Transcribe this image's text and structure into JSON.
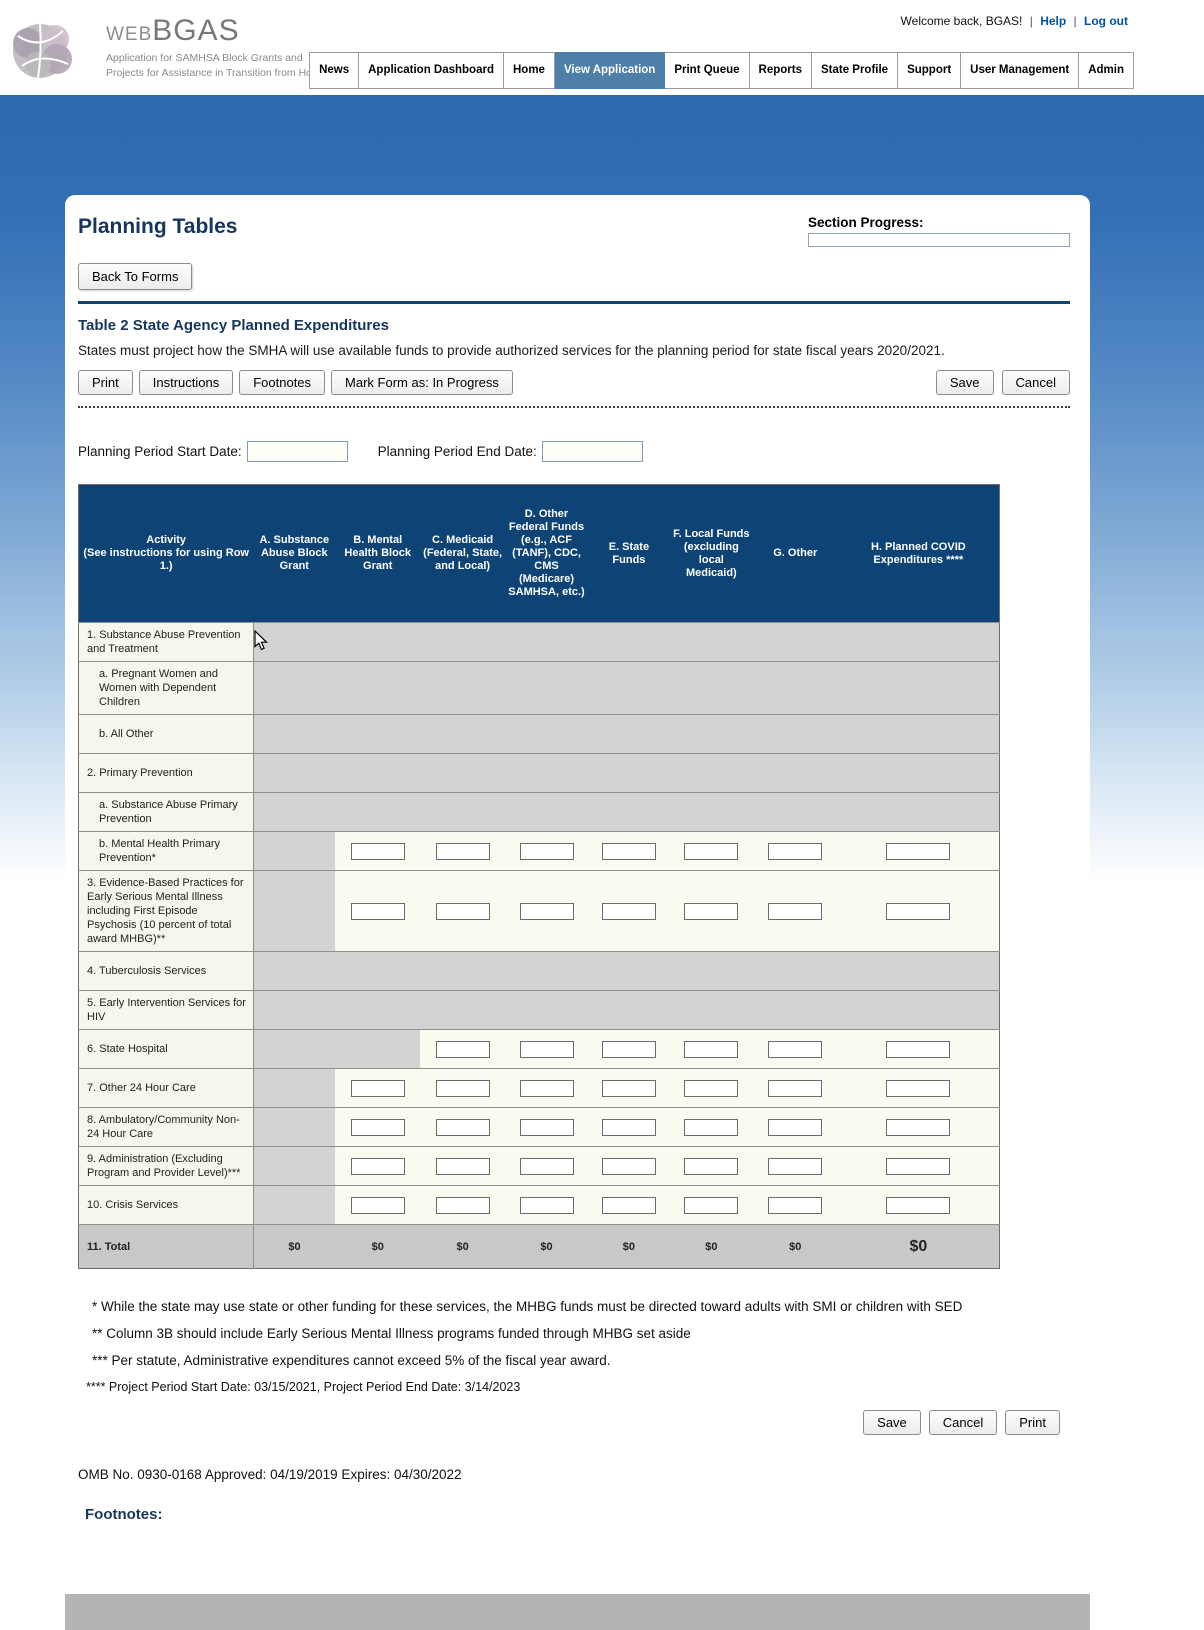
{
  "header": {
    "logo": {
      "web": "WEB",
      "bgas": "BGAS",
      "tagline1": "Application for SAMHSA Block Grants and",
      "tagline2": "Projects for Assistance in Transition from Homelessness Grants"
    },
    "user_bar": {
      "welcome": "Welcome back, BGAS!",
      "sep1": "|",
      "help": "Help",
      "sep2": "|",
      "logout": "Log out"
    }
  },
  "nav": {
    "items": [
      {
        "label": "News",
        "active": false
      },
      {
        "label": "Application Dashboard",
        "active": false
      },
      {
        "label": "Home",
        "active": false
      },
      {
        "label": "View Application",
        "active": true
      },
      {
        "label": "Print Queue",
        "active": false
      },
      {
        "label": "Reports",
        "active": false
      },
      {
        "label": "State Profile",
        "active": false
      },
      {
        "label": "Support",
        "active": false
      },
      {
        "label": "User Management",
        "active": false
      },
      {
        "label": "Admin",
        "active": false
      }
    ]
  },
  "page": {
    "title": "Planning Tables",
    "section_progress_label": "Section Progress:",
    "back_to_forms": "Back To Forms",
    "form": {
      "title": "Table 2 State Agency Planned Expenditures",
      "description": "States must project how the SMHA will use available funds to provide authorized services for the planning period for state fiscal years 2020/2021.",
      "toolbar": {
        "print": "Print",
        "instructions": "Instructions",
        "footnotes": "Footnotes",
        "mark_form": "Mark Form as: In Progress",
        "save": "Save",
        "cancel": "Cancel"
      },
      "dates": {
        "start_label": "Planning Period Start Date:",
        "start_value": "",
        "end_label": "Planning Period End Date:",
        "end_value": ""
      }
    },
    "table": {
      "columns": [
        "Activity\n(See instructions for using Row 1.)",
        "A.  Substance Abuse Block Grant",
        "B.  Mental Health Block Grant",
        "C.  Medicaid (Federal, State, and Local)",
        "D.  Other Federal Funds (e.g., ACF (TANF), CDC, CMS (Medicare) SAMHSA, etc.)",
        "E.  State Funds",
        "F.  Local Funds (excluding local Medicaid)",
        "G.  Other",
        "H.  Planned COVID Expenditures ****"
      ],
      "rows": [
        {
          "label": "1. Substance Abuse Prevention and Treatment",
          "indent": false,
          "total": false,
          "cells": [
            "gray",
            "gray",
            "gray",
            "gray",
            "gray",
            "gray",
            "gray",
            "gray"
          ]
        },
        {
          "label": "a. Pregnant Women and Women with Dependent Children",
          "indent": true,
          "total": false,
          "cells": [
            "gray",
            "gray",
            "gray",
            "gray",
            "gray",
            "gray",
            "gray",
            "gray"
          ]
        },
        {
          "label": "b. All Other",
          "indent": true,
          "total": false,
          "cells": [
            "gray",
            "gray",
            "gray",
            "gray",
            "gray",
            "gray",
            "gray",
            "gray"
          ]
        },
        {
          "label": "2. Primary Prevention",
          "indent": false,
          "total": false,
          "cells": [
            "gray",
            "gray",
            "gray",
            "gray",
            "gray",
            "gray",
            "gray",
            "gray"
          ]
        },
        {
          "label": "a. Substance Abuse Primary Prevention",
          "indent": true,
          "total": false,
          "cells": [
            "gray",
            "gray",
            "gray",
            "gray",
            "gray",
            "gray",
            "gray",
            "gray"
          ]
        },
        {
          "label": "b. Mental Health Primary Prevention*",
          "indent": true,
          "total": false,
          "cells": [
            "gray",
            "input",
            "input",
            "input",
            "input",
            "input",
            "input",
            "input"
          ]
        },
        {
          "label": "3. Evidence-Based Practices for Early Serious Mental Illness including First Episode Psychosis (10 percent of total award MHBG)**",
          "indent": false,
          "total": false,
          "cells": [
            "gray",
            "input",
            "input",
            "input",
            "input",
            "input",
            "input",
            "input"
          ]
        },
        {
          "label": "4. Tuberculosis Services",
          "indent": false,
          "total": false,
          "cells": [
            "gray",
            "gray",
            "gray",
            "gray",
            "gray",
            "gray",
            "gray",
            "gray"
          ]
        },
        {
          "label": "5. Early Intervention Services for HIV",
          "indent": false,
          "total": false,
          "cells": [
            "gray",
            "gray",
            "gray",
            "gray",
            "gray",
            "gray",
            "gray",
            "gray"
          ]
        },
        {
          "label": "6. State Hospital",
          "indent": false,
          "total": false,
          "cells": [
            "gray",
            "gray",
            "input",
            "input",
            "input",
            "input",
            "input",
            "input"
          ]
        },
        {
          "label": "7. Other 24 Hour Care",
          "indent": false,
          "total": false,
          "cells": [
            "gray",
            "input",
            "input",
            "input",
            "input",
            "input",
            "input",
            "input"
          ]
        },
        {
          "label": "8. Ambulatory/Community Non-24 Hour Care",
          "indent": false,
          "total": false,
          "cells": [
            "gray",
            "input",
            "input",
            "input",
            "input",
            "input",
            "input",
            "input"
          ]
        },
        {
          "label": "9. Administration (Excluding Program and Provider Level)***",
          "indent": false,
          "total": false,
          "cells": [
            "gray",
            "input",
            "input",
            "input",
            "input",
            "input",
            "input",
            "input"
          ]
        },
        {
          "label": "10. Crisis Services",
          "indent": false,
          "total": false,
          "cells": [
            "gray",
            "input",
            "input",
            "input",
            "input",
            "input",
            "input",
            "input"
          ]
        },
        {
          "label": "11. Total",
          "indent": false,
          "total": true,
          "cells": [
            "$0",
            "$0",
            "$0",
            "$0",
            "$0",
            "$0",
            "$0",
            "$0"
          ]
        }
      ]
    },
    "footnote_lines": [
      "* While the state may use state or other funding for these services, the MHBG funds must be directed toward adults with SMI or children with SED",
      "** Column 3B should include Early Serious Mental Illness programs funded through MHBG set aside",
      "*** Per statute, Administrative expenditures cannot exceed 5% of the fiscal year award.",
      "**** Project Period Start Date: 03/15/2021, Project Period End Date: 3/14/2023"
    ],
    "bottom_buttons": {
      "save": "Save",
      "cancel": "Cancel",
      "print": "Print"
    },
    "omb_line": "OMB No. 0930-0168 Approved: 04/19/2019 Expires: 04/30/2022",
    "footnotes_heading": "Footnotes:"
  },
  "colors": {
    "table_header_navy": "#0e4475",
    "active_tab_blue": "#4e7fa8",
    "link_blue": "#0054a6",
    "heading_navy": "#17365d"
  }
}
